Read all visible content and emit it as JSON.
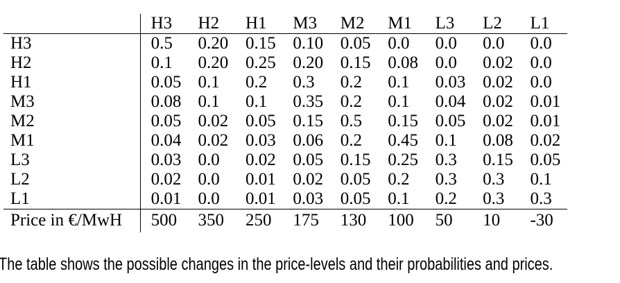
{
  "table": {
    "corner_label": "",
    "column_headers": [
      "H3",
      "H2",
      "H1",
      "M3",
      "M2",
      "M1",
      "L3",
      "L2",
      "L1"
    ],
    "rows": [
      {
        "label": "H3",
        "values": [
          "0.5",
          "0.20",
          "0.15",
          "0.10",
          "0.05",
          "0.0",
          "0.0",
          "0.0",
          "0.0"
        ]
      },
      {
        "label": "H2",
        "values": [
          "0.1",
          "0.20",
          "0.25",
          "0.20",
          "0.15",
          "0.08",
          "0.0",
          "0.02",
          "0.0"
        ]
      },
      {
        "label": "H1",
        "values": [
          "0.05",
          "0.1",
          "0.2",
          "0.3",
          "0.2",
          "0.1",
          "0.03",
          "0.02",
          "0.0"
        ]
      },
      {
        "label": "M3",
        "values": [
          "0.08",
          "0.1",
          "0.1",
          "0.35",
          "0.2",
          "0.1",
          "0.04",
          "0.02",
          "0.01"
        ]
      },
      {
        "label": "M2",
        "values": [
          "0.05",
          "0.02",
          "0.05",
          "0.15",
          "0.5",
          "0.15",
          "0.05",
          "0.02",
          "0.01"
        ]
      },
      {
        "label": "M1",
        "values": [
          "0.04",
          "0.02",
          "0.03",
          "0.06",
          "0.2",
          "0.45",
          "0.1",
          "0.08",
          "0.02"
        ]
      },
      {
        "label": "L3",
        "values": [
          "0.03",
          "0.0",
          "0.02",
          "0.05",
          "0.15",
          "0.25",
          "0.3",
          "0.15",
          "0.05"
        ]
      },
      {
        "label": "L2",
        "values": [
          "0.02",
          "0.0",
          "0.01",
          "0.02",
          "0.05",
          "0.2",
          "0.3",
          "0.3",
          "0.1"
        ]
      },
      {
        "label": "L1",
        "values": [
          "0.01",
          "0.0",
          "0.01",
          "0.03",
          "0.05",
          "0.1",
          "0.2",
          "0.3",
          "0.3"
        ]
      }
    ],
    "price_row": {
      "label": "Price in €/MwH",
      "values": [
        "500",
        "350",
        "250",
        "175",
        "130",
        "100",
        "50",
        "10",
        "-30"
      ]
    }
  },
  "caption": "The table shows the possible changes in the price-levels and their probabilities and prices."
}
